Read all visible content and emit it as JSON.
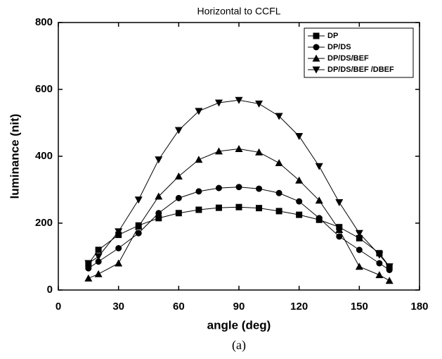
{
  "chart_data": {
    "type": "line",
    "title": "Horizontal to CCFL",
    "x_label": "angle (deg)",
    "y_label": "luminance (nit)",
    "caption": "(a)",
    "x": [
      15,
      20,
      30,
      40,
      50,
      60,
      70,
      80,
      90,
      100,
      110,
      120,
      130,
      140,
      150,
      160,
      165
    ],
    "series": [
      {
        "name": "DP",
        "color": "#000000",
        "marker": "square",
        "values": [
          78,
          120,
          165,
          193,
          215,
          230,
          240,
          246,
          248,
          245,
          236,
          225,
          210,
          188,
          155,
          110,
          70
        ]
      },
      {
        "name": "DP/DS",
        "color": "#000000",
        "marker": "circle",
        "values": [
          65,
          85,
          125,
          170,
          230,
          275,
          295,
          305,
          308,
          303,
          290,
          265,
          215,
          160,
          120,
          80,
          60
        ]
      },
      {
        "name": "DP/DS/BEF",
        "color": "#000000",
        "marker": "triangle-up",
        "values": [
          35,
          48,
          80,
          190,
          280,
          340,
          390,
          415,
          422,
          412,
          380,
          328,
          268,
          180,
          70,
          45,
          28
        ]
      },
      {
        "name": "DP/DS/BEF /DBEF",
        "color": "#000000",
        "marker": "triangle-down",
        "values": [
          80,
          100,
          175,
          270,
          390,
          478,
          535,
          560,
          568,
          557,
          520,
          460,
          370,
          262,
          170,
          105,
          70
        ]
      }
    ],
    "xlim": [
      0,
      180
    ],
    "xticks": [
      0,
      30,
      60,
      90,
      120,
      150,
      180
    ],
    "ylim": [
      0,
      800
    ],
    "yticks": [
      0,
      200,
      400,
      600,
      800
    ],
    "legend": "upper right"
  }
}
